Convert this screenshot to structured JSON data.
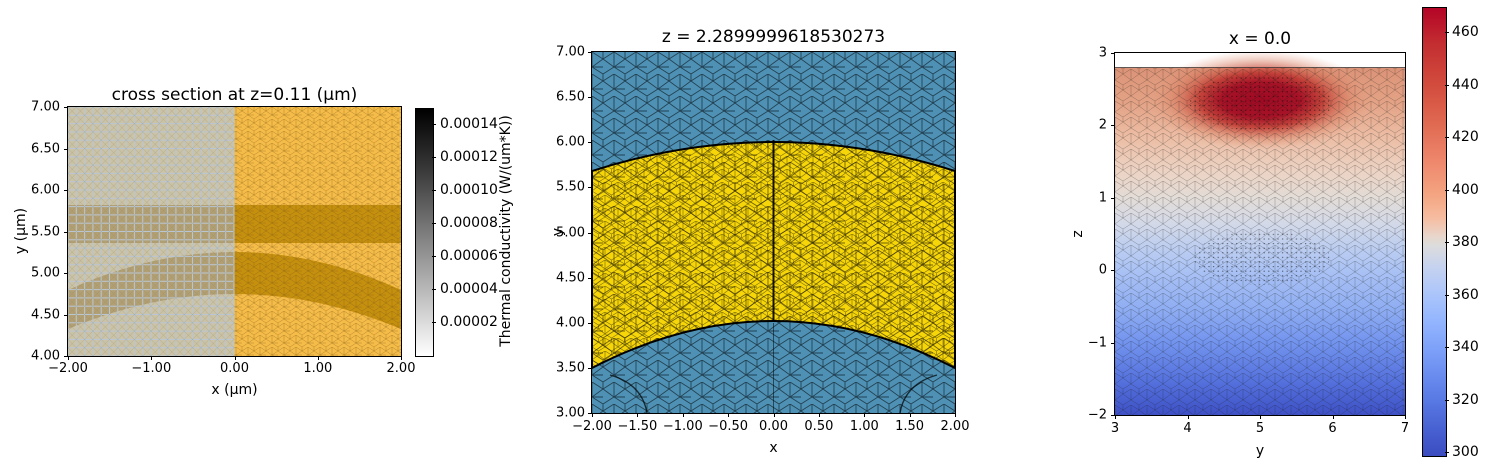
{
  "colors": {
    "mesh_blue": "#4e91b5",
    "mesh_yellow": "#f7d609",
    "orange_light": "#f6bc49",
    "orange_dark": "#c6900f",
    "gray_light": "#cbc3a8",
    "gray_dark": "#b2a074",
    "grid_line": "#b9c5d2",
    "cool_blue": "#3b4cc0",
    "warm_red": "#b40426",
    "hot_core": "#9f0a23",
    "deep_blue_bottom": "#3e51c6"
  },
  "plots": {
    "left": {
      "title": "cross section at z=0.11 (μm)",
      "xlabel": "x (μm)",
      "ylabel": "y (μm)",
      "x_ticks": [
        "−2.00",
        "−1.00",
        "0.00",
        "1.00",
        "2.00"
      ],
      "y_ticks": [
        "7.00",
        "6.50",
        "6.00",
        "5.50",
        "5.00",
        "4.50",
        "4.00"
      ],
      "colorbar_label": "Thermal conductivity (W/(um*K))",
      "colorbar_ticks": [
        "0.00014",
        "0.00012",
        "0.00010",
        "0.00008",
        "0.00006",
        "0.00004",
        "0.00002"
      ]
    },
    "middle": {
      "title": "z = 2.2899999618530273",
      "xlabel": "x",
      "ylabel": "y",
      "x_ticks": [
        "−2.00",
        "−1.50",
        "−1.00",
        "−0.50",
        "0.00",
        "0.50",
        "1.00",
        "1.50",
        "2.00"
      ],
      "y_ticks": [
        "7.00",
        "6.50",
        "6.00",
        "5.50",
        "5.00",
        "4.50",
        "4.00",
        "3.50",
        "3.00"
      ]
    },
    "right": {
      "title": "x = 0.0",
      "xlabel": "y",
      "ylabel": "z",
      "x_ticks": [
        "3",
        "4",
        "5",
        "6",
        "7"
      ],
      "y_ticks": [
        "3",
        "2",
        "1",
        "0",
        "−1",
        "−2"
      ],
      "colorbar_ticks": [
        "460",
        "440",
        "420",
        "400",
        "380",
        "360",
        "340",
        "320",
        "300"
      ]
    }
  },
  "chart_data": [
    {
      "type": "heatmap",
      "title": "cross section at z=0.11 (μm)",
      "xlabel": "x (μm)",
      "ylabel": "y (μm)",
      "xlim": [
        -2.0,
        2.0
      ],
      "ylim": [
        4.0,
        7.0
      ],
      "x_ticks": [
        -2.0,
        -1.0,
        0.0,
        1.0,
        2.0
      ],
      "y_ticks": [
        4.0,
        4.5,
        5.0,
        5.5,
        6.0,
        6.5,
        7.0
      ],
      "colorbar": {
        "label": "Thermal conductivity (W/(um*K))",
        "colormap": "grayscale, white(low) to black(high)",
        "range": [
          0.0,
          0.00015
        ],
        "ticks": [
          2e-05,
          4e-05,
          6e-05,
          8e-05,
          0.0001,
          0.00012,
          0.00014
        ]
      },
      "regions": [
        {
          "name": "background",
          "appearance": "light orange #f6bc49 for x>0; muted gray-tan #cbc3a8 (gray overlay) for x<0"
        },
        {
          "name": "horizontal-slab-band",
          "y_range": [
            5.36,
            5.82
          ],
          "x_range": [
            -2.0,
            2.0
          ],
          "appearance": "dark orange #c6900f (muted #b2a074 for x<0)"
        },
        {
          "name": "curved-waveguide-band",
          "description": "arc band peaking at x=0: spans y 4.75-5.25 at x=0, falling to y 4.33-4.79 at x=±2",
          "appearance": "dark orange (muted for x<0)"
        },
        {
          "name": "mesh-style",
          "description": "structured quad grid (light blue-gray lines) for x<0; unstructured triangular mesh for x>0"
        }
      ]
    },
    {
      "type": "mesh",
      "title": "z = 2.2899999618530273",
      "xlabel": "x",
      "ylabel": "y",
      "xlim": [
        -2.0,
        2.0
      ],
      "ylim": [
        3.0,
        7.0
      ],
      "x_ticks": [
        -2.0,
        -1.5,
        -1.0,
        -0.5,
        0.0,
        0.5,
        1.0,
        1.5,
        2.0
      ],
      "y_ticks": [
        3.0,
        3.5,
        4.0,
        4.5,
        5.0,
        5.5,
        6.0,
        6.5,
        7.0
      ],
      "legend": "none",
      "grid": false,
      "regions": [
        {
          "name": "cladding",
          "color": "#4e91b5",
          "description": "steel-blue background with black triangulated mesh"
        },
        {
          "name": "curved-slab",
          "color": "#f7d609",
          "description": "yellow band between top arc (y=5.68 at x=±2 rising to y=6.00 at x=0) and bottom arc (y=3.50 at x=±2 rising to y=4.02 at x=0); denser mesh inside; bold black boundary; vertical refinement line at x=0"
        }
      ]
    },
    {
      "type": "heatmap",
      "title": "x = 0.0",
      "xlabel": "y",
      "ylabel": "z",
      "xlim": [
        3.0,
        7.0
      ],
      "ylim": [
        -2.0,
        3.0
      ],
      "x_ticks": [
        3,
        4,
        5,
        6,
        7
      ],
      "y_ticks": [
        -2,
        -1,
        0,
        1,
        2,
        3
      ],
      "colorbar": {
        "colormap": "coolwarm",
        "range": [
          300,
          469
        ],
        "ticks": [
          300,
          320,
          340,
          360,
          380,
          400,
          420,
          440,
          460
        ]
      },
      "field": {
        "description": "temperature field on triangulated domain; domain top edge at z≈2.8 (white gap up to z=3); dark-red hotspot with dense mesh near (y≈5, z≈2.3); second dense-mesh patch near (y≈5.2, z≈0); temperature decreases smoothly to deep blue at z=-2",
        "samples": [
          {
            "y": 5.0,
            "z": 2.35,
            "T": 465
          },
          {
            "y": 3.2,
            "z": 2.8,
            "T": 420
          },
          {
            "y": 6.8,
            "z": 2.8,
            "T": 415
          },
          {
            "y": 5.0,
            "z": 1.0,
            "T": 392
          },
          {
            "y": 5.0,
            "z": 0.0,
            "T": 358
          },
          {
            "y": 5.0,
            "z": -1.0,
            "T": 330
          },
          {
            "y": 5.0,
            "z": -2.0,
            "T": 303
          },
          {
            "y": 7.0,
            "z": -2.0,
            "T": 300
          }
        ]
      }
    }
  ]
}
